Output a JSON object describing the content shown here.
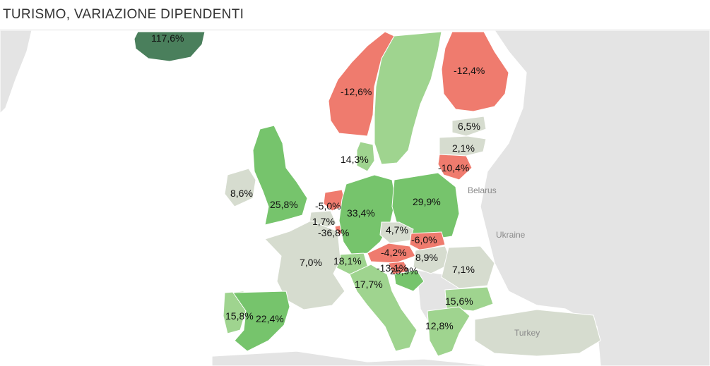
{
  "title": "TURISMO, VARIAZIONE DIPENDENTI",
  "colors": {
    "negative": "#ef7b6e",
    "neutral": "#d6dccf",
    "light_positive": "#9fd48f",
    "positive": "#76c46c",
    "strong_positive": "#4a7f5c",
    "nodata_land": "#e4e4e4",
    "sea": "#ffffff"
  },
  "map_labels": [
    {
      "id": "belarus",
      "text": "Belarus"
    },
    {
      "id": "ukraine",
      "text": "Ukraine"
    },
    {
      "id": "turkey",
      "text": "Turkey"
    }
  ],
  "regions": [
    {
      "id": "iceland",
      "label": "117,6%",
      "value": 117.6
    },
    {
      "id": "norway",
      "label": "-12,6%",
      "value": -12.6
    },
    {
      "id": "sweden",
      "label": "",
      "value": null
    },
    {
      "id": "finland",
      "label": "-12,4%",
      "value": -12.4
    },
    {
      "id": "estonia",
      "label": "6,5%",
      "value": 6.5
    },
    {
      "id": "latvia",
      "label": "2,1%",
      "value": 2.1
    },
    {
      "id": "lithuania",
      "label": "-10,4%",
      "value": -10.4
    },
    {
      "id": "denmark",
      "label": "14,3%",
      "value": 14.3
    },
    {
      "id": "ireland",
      "label": "8,6%",
      "value": 8.6
    },
    {
      "id": "uk",
      "label": "25,8%",
      "value": 25.8
    },
    {
      "id": "netherlands",
      "label": "-5,0%",
      "value": -5.0
    },
    {
      "id": "belgium",
      "label": "1,7%",
      "value": 1.7
    },
    {
      "id": "luxembourg",
      "label": "-36,8%",
      "value": -36.8
    },
    {
      "id": "germany",
      "label": "33,4%",
      "value": 33.4
    },
    {
      "id": "poland",
      "label": "29,9%",
      "value": 29.9
    },
    {
      "id": "czechia",
      "label": "4,7%",
      "value": 4.7
    },
    {
      "id": "slovakia",
      "label": "-6,0%",
      "value": -6.0
    },
    {
      "id": "austria",
      "label": "-4,2%",
      "value": -4.2
    },
    {
      "id": "hungary",
      "label": "8,9%",
      "value": 8.9
    },
    {
      "id": "slovenia",
      "label": "-13,1%",
      "value": -13.1
    },
    {
      "id": "croatia",
      "label": "25,9%",
      "value": 25.9
    },
    {
      "id": "romania",
      "label": "7,1%",
      "value": 7.1
    },
    {
      "id": "switzerland",
      "label": "18,1%",
      "value": 18.1
    },
    {
      "id": "france",
      "label": "7,0%",
      "value": 7.0
    },
    {
      "id": "italy",
      "label": "17,7%",
      "value": 17.7
    },
    {
      "id": "bulgaria",
      "label": "15,6%",
      "value": 15.6
    },
    {
      "id": "greece",
      "label": "12,8%",
      "value": 12.8
    },
    {
      "id": "portugal",
      "label": "15,8%",
      "value": 15.8
    },
    {
      "id": "spain",
      "label": "22,4%",
      "value": 22.4
    },
    {
      "id": "turkey",
      "label": "",
      "value": null
    }
  ]
}
